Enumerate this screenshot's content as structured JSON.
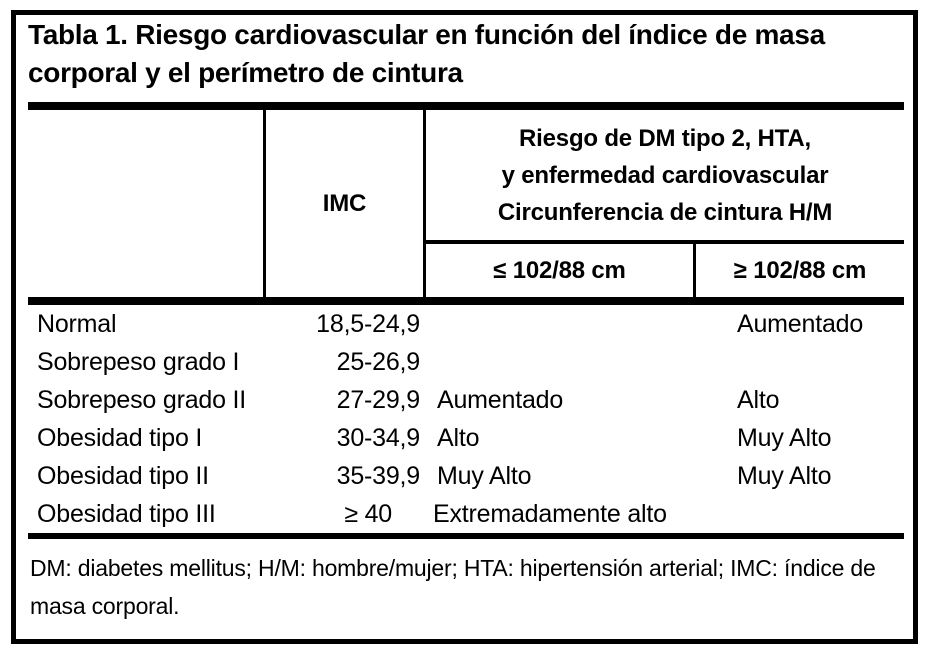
{
  "colors": {
    "background": "#ffffff",
    "text": "#000000",
    "border": "#000000",
    "rules": "#000000"
  },
  "table": {
    "title_lines": [
      "Tabla 1. Riesgo cardiovascular en función del índice de masa",
      "corporal y el perímetro de cintura"
    ],
    "header": {
      "imc": "IMC",
      "risk_lines": [
        "Riesgo de DM tipo 2, HTA,",
        "y enfermedad cardiovascular",
        "Circunferencia de cintura H/M"
      ],
      "waist_low": "≤ 102/88 cm",
      "waist_high": "≥ 102/88 cm"
    },
    "rows": [
      {
        "category": "Normal",
        "imc": "18,5-24,9",
        "waist_low": "",
        "waist_high": "Aumentado"
      },
      {
        "category": "Sobrepeso grado I",
        "imc": "25-26,9",
        "waist_low": "",
        "waist_high": ""
      },
      {
        "category": "Sobrepeso grado II",
        "imc": "27-29,9",
        "waist_low": "Aumentado",
        "waist_high": "Alto"
      },
      {
        "category": "Obesidad tipo I",
        "imc": "30-34,9",
        "waist_low": "Alto",
        "waist_high": "Muy Alto"
      },
      {
        "category": "Obesidad tipo II",
        "imc": "35-39,9",
        "waist_low": "Muy Alto",
        "waist_high": "Muy Alto"
      },
      {
        "category": "Obesidad tipo III",
        "imc": "≥ 40",
        "waist_low": "Extremadamente alto",
        "waist_high": ""
      }
    ],
    "footnote_lines": [
      "DM: diabetes mellitus; H/M: hombre/mujer; HTA: hipertensión arterial; IMC: índice de",
      "masa corporal."
    ]
  }
}
